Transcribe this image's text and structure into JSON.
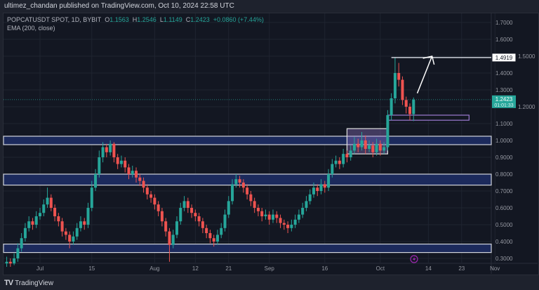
{
  "published": "ultimez_chandan published on TradingView.com, Oct 10, 2024 22:58 UTC",
  "legend": {
    "symbol": "POPCATUSDT SPOT, 1D, BYBIT",
    "o_label": "O",
    "o": "1.1563",
    "h_label": "H",
    "h": "1.2546",
    "l_label": "L",
    "l": "1.1149",
    "c_label": "C",
    "c": "1.2423",
    "change": "+0.0860 (+7.44%)",
    "indicator": "EMA (200, close)"
  },
  "footer": {
    "brand": "TradingView",
    "logo": "TV"
  },
  "colors": {
    "up": "#26a69a",
    "down": "#ef5350",
    "zone": "#1c2a5c",
    "zone_border": "#d1d4dc",
    "box": "#9c7bd1",
    "bg": "#131722"
  },
  "chart_data": {
    "type": "candlestick",
    "ylim": [
      0.25,
      1.75
    ],
    "y_ticks": [
      "1.7000",
      "1.6000",
      "1.5000",
      "1.4000",
      "1.3000",
      "1.2000",
      "1.1000",
      "1.0000",
      "0.9000",
      "0.8000",
      "0.7000",
      "0.6000",
      "0.5000",
      "0.4000",
      "0.3000"
    ],
    "x_ticks": [
      {
        "label": "Jul",
        "date": "2024-07-01"
      },
      {
        "label": "15",
        "date": "2024-07-15"
      },
      {
        "label": "Aug",
        "date": "2024-08-01"
      },
      {
        "label": "12",
        "date": "2024-08-12"
      },
      {
        "label": "21",
        "date": "2024-08-21"
      },
      {
        "label": "Sep",
        "date": "2024-09-01"
      },
      {
        "label": "16",
        "date": "2024-09-16"
      },
      {
        "label": "Oct",
        "date": "2024-10-01"
      },
      {
        "label": "14",
        "date": "2024-10-14"
      },
      {
        "label": "23",
        "date": "2024-10-23"
      },
      {
        "label": "Nov",
        "date": "2024-11-01"
      }
    ],
    "last_price": "1.2423",
    "countdown": "01:01:33",
    "marked_level": "1.4919",
    "zones": [
      [
        0.975,
        1.025
      ],
      [
        0.735,
        0.8
      ],
      [
        0.335,
        0.385
      ]
    ],
    "boxes": [
      {
        "from": "2024-09-22",
        "to": "2024-10-03",
        "low": 0.92,
        "high": 1.07,
        "fill": true
      },
      {
        "from": "2024-10-03",
        "to": "2024-10-25",
        "low": 1.12,
        "high": 1.15,
        "fill": false
      }
    ],
    "level_line": {
      "from": "2024-10-04",
      "value": 1.4919
    },
    "arrow": {
      "from": [
        "2024-10-11",
        1.28
      ],
      "to": [
        "2024-10-15",
        1.5
      ]
    },
    "candles": [
      [
        "2024-06-22",
        0.27,
        0.31,
        0.25,
        0.28
      ],
      [
        "2024-06-23",
        0.28,
        0.3,
        0.25,
        0.27
      ],
      [
        "2024-06-24",
        0.27,
        0.33,
        0.26,
        0.3
      ],
      [
        "2024-06-25",
        0.3,
        0.39,
        0.28,
        0.36
      ],
      [
        "2024-06-26",
        0.36,
        0.45,
        0.34,
        0.42
      ],
      [
        "2024-06-27",
        0.42,
        0.51,
        0.4,
        0.48
      ],
      [
        "2024-06-28",
        0.48,
        0.55,
        0.46,
        0.52
      ],
      [
        "2024-06-29",
        0.52,
        0.54,
        0.47,
        0.5
      ],
      [
        "2024-06-30",
        0.5,
        0.58,
        0.48,
        0.55
      ],
      [
        "2024-07-01",
        0.55,
        0.6,
        0.53,
        0.57
      ],
      [
        "2024-07-02",
        0.57,
        0.65,
        0.55,
        0.62
      ],
      [
        "2024-07-03",
        0.62,
        0.72,
        0.6,
        0.66
      ],
      [
        "2024-07-04",
        0.66,
        0.68,
        0.58,
        0.6
      ],
      [
        "2024-07-05",
        0.6,
        0.62,
        0.52,
        0.55
      ],
      [
        "2024-07-06",
        0.55,
        0.57,
        0.49,
        0.52
      ],
      [
        "2024-07-07",
        0.52,
        0.54,
        0.43,
        0.46
      ],
      [
        "2024-07-08",
        0.46,
        0.48,
        0.41,
        0.44
      ],
      [
        "2024-07-09",
        0.44,
        0.46,
        0.36,
        0.4
      ],
      [
        "2024-07-10",
        0.4,
        0.46,
        0.38,
        0.43
      ],
      [
        "2024-07-11",
        0.43,
        0.51,
        0.41,
        0.48
      ],
      [
        "2024-07-12",
        0.48,
        0.55,
        0.46,
        0.52
      ],
      [
        "2024-07-13",
        0.52,
        0.54,
        0.47,
        0.5
      ],
      [
        "2024-07-14",
        0.5,
        0.63,
        0.48,
        0.6
      ],
      [
        "2024-07-15",
        0.6,
        0.76,
        0.58,
        0.72
      ],
      [
        "2024-07-16",
        0.72,
        0.83,
        0.7,
        0.8
      ],
      [
        "2024-07-17",
        0.8,
        0.94,
        0.78,
        0.9
      ],
      [
        "2024-07-18",
        0.9,
        0.99,
        0.87,
        0.96
      ],
      [
        "2024-07-19",
        0.96,
        0.98,
        0.9,
        0.93
      ],
      [
        "2024-07-20",
        0.93,
        1.0,
        0.91,
        0.98
      ],
      [
        "2024-07-21",
        0.98,
        0.99,
        0.87,
        0.9
      ],
      [
        "2024-07-22",
        0.9,
        0.92,
        0.83,
        0.86
      ],
      [
        "2024-07-23",
        0.86,
        0.91,
        0.84,
        0.88
      ],
      [
        "2024-07-24",
        0.88,
        0.9,
        0.81,
        0.84
      ],
      [
        "2024-07-25",
        0.84,
        0.86,
        0.77,
        0.8
      ],
      [
        "2024-07-26",
        0.8,
        0.85,
        0.78,
        0.82
      ],
      [
        "2024-07-27",
        0.82,
        0.84,
        0.75,
        0.78
      ],
      [
        "2024-07-28",
        0.78,
        0.8,
        0.73,
        0.76
      ],
      [
        "2024-07-29",
        0.76,
        0.78,
        0.69,
        0.72
      ],
      [
        "2024-07-30",
        0.72,
        0.74,
        0.65,
        0.68
      ],
      [
        "2024-07-31",
        0.68,
        0.7,
        0.63,
        0.66
      ],
      [
        "2024-08-01",
        0.66,
        0.68,
        0.59,
        0.62
      ],
      [
        "2024-08-02",
        0.62,
        0.64,
        0.55,
        0.58
      ],
      [
        "2024-08-03",
        0.58,
        0.6,
        0.49,
        0.52
      ],
      [
        "2024-08-04",
        0.52,
        0.54,
        0.43,
        0.46
      ],
      [
        "2024-08-05",
        0.46,
        0.48,
        0.28,
        0.38
      ],
      [
        "2024-08-06",
        0.38,
        0.47,
        0.36,
        0.44
      ],
      [
        "2024-08-07",
        0.44,
        0.55,
        0.42,
        0.52
      ],
      [
        "2024-08-08",
        0.52,
        0.63,
        0.5,
        0.6
      ],
      [
        "2024-08-09",
        0.6,
        0.67,
        0.58,
        0.64
      ],
      [
        "2024-08-10",
        0.64,
        0.66,
        0.57,
        0.6
      ],
      [
        "2024-08-11",
        0.6,
        0.62,
        0.54,
        0.57
      ],
      [
        "2024-08-12",
        0.57,
        0.59,
        0.52,
        0.55
      ],
      [
        "2024-08-13",
        0.55,
        0.57,
        0.49,
        0.52
      ],
      [
        "2024-08-14",
        0.52,
        0.54,
        0.45,
        0.48
      ],
      [
        "2024-08-15",
        0.48,
        0.5,
        0.42,
        0.45
      ],
      [
        "2024-08-16",
        0.45,
        0.47,
        0.39,
        0.42
      ],
      [
        "2024-08-17",
        0.42,
        0.44,
        0.37,
        0.4
      ],
      [
        "2024-08-18",
        0.4,
        0.47,
        0.38,
        0.44
      ],
      [
        "2024-08-19",
        0.44,
        0.51,
        0.42,
        0.48
      ],
      [
        "2024-08-20",
        0.48,
        0.59,
        0.46,
        0.56
      ],
      [
        "2024-08-21",
        0.56,
        0.67,
        0.54,
        0.64
      ],
      [
        "2024-08-22",
        0.64,
        0.77,
        0.62,
        0.74
      ],
      [
        "2024-08-23",
        0.74,
        0.8,
        0.72,
        0.77
      ],
      [
        "2024-08-24",
        0.77,
        0.79,
        0.72,
        0.75
      ],
      [
        "2024-08-25",
        0.75,
        0.77,
        0.69,
        0.72
      ],
      [
        "2024-08-26",
        0.72,
        0.74,
        0.65,
        0.68
      ],
      [
        "2024-08-27",
        0.68,
        0.7,
        0.61,
        0.64
      ],
      [
        "2024-08-28",
        0.64,
        0.66,
        0.57,
        0.6
      ],
      [
        "2024-08-29",
        0.6,
        0.62,
        0.55,
        0.58
      ],
      [
        "2024-08-30",
        0.58,
        0.6,
        0.52,
        0.55
      ],
      [
        "2024-08-31",
        0.55,
        0.59,
        0.53,
        0.56
      ],
      [
        "2024-09-01",
        0.56,
        0.58,
        0.5,
        0.53
      ],
      [
        "2024-09-02",
        0.53,
        0.59,
        0.51,
        0.56
      ],
      [
        "2024-09-03",
        0.56,
        0.58,
        0.51,
        0.54
      ],
      [
        "2024-09-04",
        0.54,
        0.56,
        0.48,
        0.51
      ],
      [
        "2024-09-05",
        0.51,
        0.53,
        0.47,
        0.5
      ],
      [
        "2024-09-06",
        0.5,
        0.52,
        0.45,
        0.48
      ],
      [
        "2024-09-07",
        0.48,
        0.53,
        0.46,
        0.5
      ],
      [
        "2024-09-08",
        0.5,
        0.56,
        0.48,
        0.53
      ],
      [
        "2024-09-09",
        0.53,
        0.59,
        0.51,
        0.56
      ],
      [
        "2024-09-10",
        0.56,
        0.63,
        0.54,
        0.6
      ],
      [
        "2024-09-11",
        0.6,
        0.67,
        0.58,
        0.64
      ],
      [
        "2024-09-12",
        0.64,
        0.71,
        0.62,
        0.68
      ],
      [
        "2024-09-13",
        0.68,
        0.75,
        0.66,
        0.72
      ],
      [
        "2024-09-14",
        0.72,
        0.74,
        0.67,
        0.7
      ],
      [
        "2024-09-15",
        0.7,
        0.77,
        0.68,
        0.74
      ],
      [
        "2024-09-16",
        0.74,
        0.76,
        0.69,
        0.72
      ],
      [
        "2024-09-17",
        0.72,
        0.83,
        0.7,
        0.8
      ],
      [
        "2024-09-18",
        0.8,
        0.89,
        0.78,
        0.86
      ],
      [
        "2024-09-19",
        0.86,
        0.91,
        0.84,
        0.88
      ],
      [
        "2024-09-20",
        0.88,
        0.9,
        0.83,
        0.86
      ],
      [
        "2024-09-21",
        0.86,
        0.95,
        0.84,
        0.92
      ],
      [
        "2024-09-22",
        0.92,
        0.94,
        0.87,
        0.9
      ],
      [
        "2024-09-23",
        0.9,
        0.97,
        0.88,
        0.94
      ],
      [
        "2024-09-24",
        0.94,
        1.02,
        0.92,
        0.98
      ],
      [
        "2024-09-25",
        0.98,
        1.01,
        0.93,
        0.96
      ],
      [
        "2024-09-26",
        0.96,
        1.05,
        0.94,
        1.0
      ],
      [
        "2024-09-27",
        1.0,
        1.03,
        0.92,
        0.95
      ],
      [
        "2024-09-28",
        0.95,
        1.0,
        0.93,
        0.97
      ],
      [
        "2024-09-29",
        0.97,
        0.99,
        0.9,
        0.93
      ],
      [
        "2024-09-30",
        0.93,
        1.01,
        0.91,
        0.98
      ],
      [
        "2024-10-01",
        0.98,
        1.0,
        0.91,
        0.94
      ],
      [
        "2024-10-02",
        0.94,
        0.99,
        0.92,
        0.96
      ],
      [
        "2024-10-03",
        0.96,
        1.18,
        0.94,
        1.15
      ],
      [
        "2024-10-04",
        1.15,
        1.28,
        1.12,
        1.25
      ],
      [
        "2024-10-05",
        1.25,
        1.4919,
        1.22,
        1.4
      ],
      [
        "2024-10-06",
        1.4,
        1.46,
        1.32,
        1.36
      ],
      [
        "2024-10-07",
        1.36,
        1.38,
        1.21,
        1.24
      ],
      [
        "2024-10-08",
        1.24,
        1.26,
        1.16,
        1.2
      ],
      [
        "2024-10-09",
        1.2,
        1.22,
        1.12,
        1.1563
      ],
      [
        "2024-10-10",
        1.1563,
        1.2546,
        1.1149,
        1.2423
      ]
    ]
  }
}
